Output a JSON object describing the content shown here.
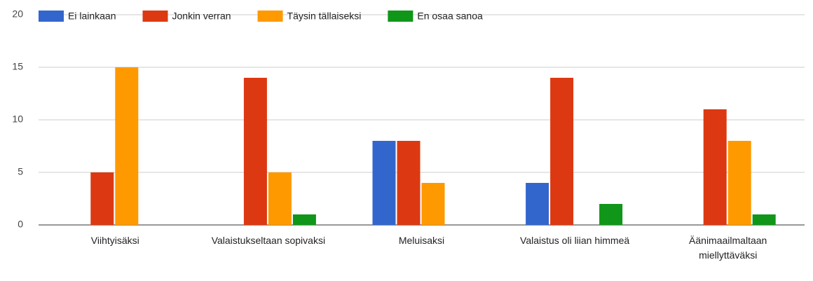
{
  "chart_data": {
    "type": "bar",
    "categories": [
      "Viihtyisäksi",
      "Valaistukseltaan sopivaksi",
      "Meluisaksi",
      "Valaistus oli liian himmeä",
      "Äänimaailmaltaan miellyttäväksi"
    ],
    "series": [
      {
        "name": "Ei lainkaan",
        "color": "#3366cc",
        "values": [
          0,
          0,
          8,
          4,
          0
        ]
      },
      {
        "name": "Jonkin verran",
        "color": "#dc3912",
        "values": [
          5,
          14,
          8,
          14,
          11
        ]
      },
      {
        "name": "Täysin tällaiseksi",
        "color": "#ff9900",
        "values": [
          15,
          5,
          4,
          0,
          8
        ]
      },
      {
        "name": "En osaa sanoa",
        "color": "#109618",
        "values": [
          0,
          1,
          0,
          2,
          1
        ]
      }
    ],
    "ylim": [
      0,
      20
    ],
    "yticks": [
      0,
      5,
      10,
      15,
      20
    ],
    "grid": true,
    "legend": "top"
  }
}
